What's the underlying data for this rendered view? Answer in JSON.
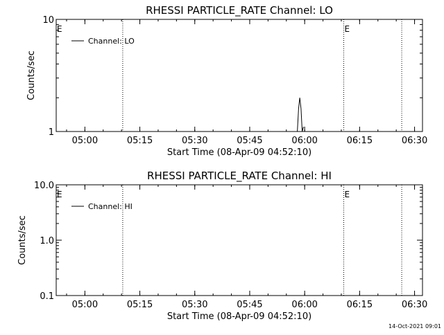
{
  "timestamp": "14-Oct-2021 09:01",
  "chart_data": [
    {
      "type": "line",
      "title": "RHESSI PARTICLE_RATE Channel: LO",
      "xlabel": "Start Time (08-Apr-09 04:52:10)",
      "ylabel": "Counts/sec",
      "yscale": "log",
      "ylim": [
        1,
        10
      ],
      "ytick_values": [
        1,
        10
      ],
      "ytick_labels": [
        "1",
        "10"
      ],
      "xlim": [
        "04:52:10",
        "06:32:10"
      ],
      "xtick_values": [
        "05:00",
        "05:15",
        "05:30",
        "05:45",
        "06:00",
        "06:15",
        "06:30"
      ],
      "xtick_labels": [
        "05:00",
        "05:15",
        "05:30",
        "05:45",
        "06:00",
        "06:15",
        "06:30"
      ],
      "vlines": [
        "05:10:20",
        "06:10:40",
        "06:26:30"
      ],
      "event_markers": [
        {
          "label": "E",
          "time": "04:52:10"
        },
        {
          "label": "E",
          "time": "06:10:40"
        }
      ],
      "legend": {
        "placement": "top-left",
        "entries": [
          "Channel: LO"
        ]
      },
      "series": [
        {
          "name": "Channel: LO",
          "x": [
            "05:58:00",
            "05:58:20",
            "05:58:40",
            "05:59:00",
            "05:59:20",
            "05:59:40"
          ],
          "y": [
            1,
            1.6,
            2.0,
            1.6,
            1,
            1.1
          ]
        }
      ]
    },
    {
      "type": "line",
      "title": "RHESSI PARTICLE_RATE Channel: HI",
      "xlabel": "Start Time (08-Apr-09 04:52:10)",
      "ylabel": "Counts/sec",
      "yscale": "log",
      "ylim": [
        0.1,
        10
      ],
      "ytick_values": [
        0.1,
        1,
        10
      ],
      "ytick_labels": [
        "0.1",
        "1.0",
        "10.0"
      ],
      "xlim": [
        "04:52:10",
        "06:32:10"
      ],
      "xtick_values": [
        "05:00",
        "05:15",
        "05:30",
        "05:45",
        "06:00",
        "06:15",
        "06:30"
      ],
      "xtick_labels": [
        "05:00",
        "05:15",
        "05:30",
        "05:45",
        "06:00",
        "06:15",
        "06:30"
      ],
      "vlines": [
        "05:10:20",
        "06:10:40",
        "06:26:30"
      ],
      "event_markers": [
        {
          "label": "E",
          "time": "04:52:10"
        },
        {
          "label": "E",
          "time": "06:10:40"
        }
      ],
      "legend": {
        "placement": "top-left",
        "entries": [
          "Channel: HI"
        ]
      },
      "series": [
        {
          "name": "Channel: HI",
          "x": [],
          "y": []
        }
      ]
    }
  ]
}
